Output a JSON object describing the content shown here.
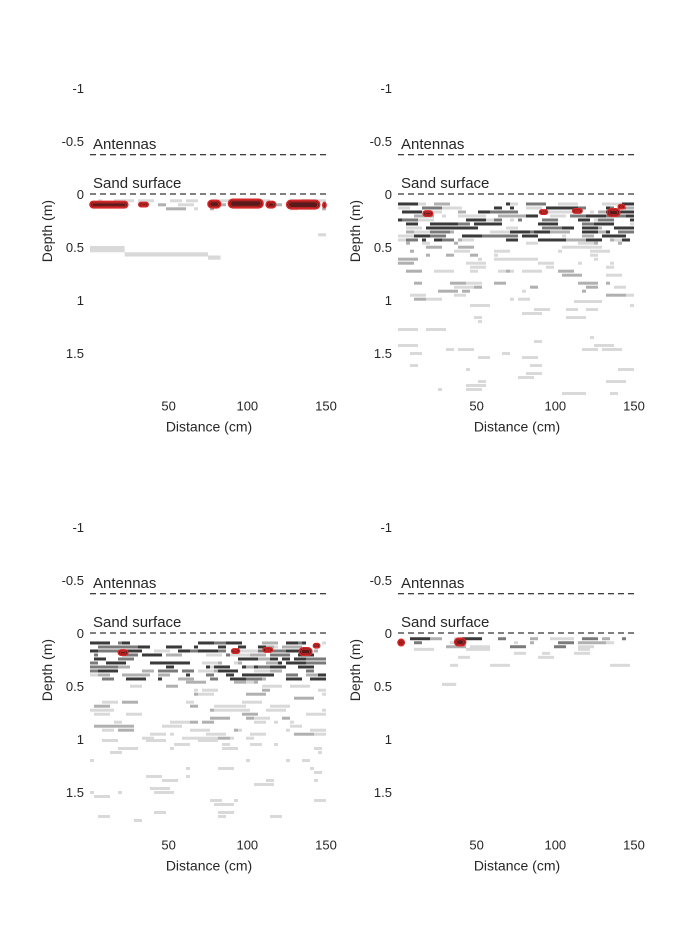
{
  "chart_data": [
    {
      "type": "heatmap",
      "panel": "top-left",
      "xlabel": "Distance (cm)",
      "ylabel": "Depth (m)",
      "xlim": [
        0,
        150
      ],
      "ylim": [
        -1,
        1.7
      ],
      "y_reversed": true,
      "xticks": [
        50,
        100,
        150
      ],
      "yticks": [
        -1,
        -0.5,
        0,
        0.5,
        1,
        1.5
      ],
      "grid": false,
      "reference_lines": [
        {
          "label": "Antennas",
          "depth": -0.37,
          "style": "dashed"
        },
        {
          "label": "Sand surface",
          "depth": 0,
          "style": "dashed"
        }
      ],
      "colormap": [
        "#ffffff",
        "#d9d9d9",
        "#b0b0b0",
        "#7a7a7a",
        "#3a3a3a",
        "#000000"
      ],
      "highlight_color": "#d62728",
      "highlight_regions": [
        {
          "x": [
            0,
            24
          ],
          "depth": [
            0.07,
            0.13
          ]
        },
        {
          "x": [
            31,
            37
          ],
          "depth": [
            0.08,
            0.12
          ]
        },
        {
          "x": [
            75,
            83
          ],
          "depth": [
            0.06,
            0.13
          ]
        },
        {
          "x": [
            88,
            110
          ],
          "depth": [
            0.05,
            0.13
          ]
        },
        {
          "x": [
            112,
            118
          ],
          "depth": [
            0.07,
            0.13
          ]
        },
        {
          "x": [
            125,
            146
          ],
          "depth": [
            0.06,
            0.14
          ]
        },
        {
          "x": [
            148,
            150
          ],
          "depth": [
            0.08,
            0.13
          ]
        }
      ],
      "reflections": [
        {
          "x": [
            0,
            150
          ],
          "depth": [
            0.05,
            0.15
          ],
          "intensity": 1
        },
        {
          "x": [
            0,
            22
          ],
          "depth": [
            0.49,
            0.55
          ],
          "intensity": 1
        },
        {
          "x": [
            22,
            75
          ],
          "depth": [
            0.55,
            0.59
          ],
          "intensity": 1
        },
        {
          "x": [
            75,
            83
          ],
          "depth": [
            0.58,
            0.62
          ],
          "intensity": 1
        },
        {
          "x": [
            145,
            150
          ],
          "depth": [
            0.37,
            0.4
          ],
          "intensity": 1
        }
      ]
    },
    {
      "type": "heatmap",
      "panel": "top-right",
      "xlabel": "Distance (cm)",
      "ylabel": "Depth (m)",
      "xlim": [
        0,
        150
      ],
      "ylim": [
        -1,
        1.7
      ],
      "y_reversed": true,
      "xticks": [
        50,
        100,
        150
      ],
      "yticks": [
        -1,
        -0.5,
        0,
        0.5,
        1,
        1.5
      ],
      "grid": false,
      "reference_lines": [
        {
          "label": "Antennas",
          "depth": -0.37,
          "style": "dashed"
        },
        {
          "label": "Sand surface",
          "depth": 0,
          "style": "dashed"
        }
      ],
      "colormap": [
        "#ffffff",
        "#d9d9d9",
        "#b0b0b0",
        "#7a7a7a",
        "#3a3a3a",
        "#000000"
      ],
      "highlight_color": "#d62728",
      "highlight_regions": [
        {
          "x": [
            16,
            22
          ],
          "depth": [
            0.16,
            0.21
          ]
        },
        {
          "x": [
            90,
            95
          ],
          "depth": [
            0.15,
            0.19
          ]
        },
        {
          "x": [
            111,
            117
          ],
          "depth": [
            0.14,
            0.18
          ]
        },
        {
          "x": [
            133,
            141
          ],
          "depth": [
            0.14,
            0.21
          ]
        },
        {
          "x": [
            140,
            144
          ],
          "depth": [
            0.1,
            0.14
          ]
        }
      ],
      "reflections": [
        {
          "x": [
            0,
            150
          ],
          "depth": [
            0.08,
            0.45
          ],
          "intensity": 3
        },
        {
          "x": [
            0,
            150
          ],
          "depth": [
            0.45,
            1.0
          ],
          "intensity": 1
        },
        {
          "x": [
            0,
            150
          ],
          "depth": [
            1.0,
            1.9
          ],
          "intensity": 0.25
        }
      ]
    },
    {
      "type": "heatmap",
      "panel": "bottom-left",
      "xlabel": "Distance (cm)",
      "ylabel": "Depth (m)",
      "xlim": [
        0,
        150
      ],
      "ylim": [
        -1,
        1.7
      ],
      "y_reversed": true,
      "xticks": [
        50,
        100,
        150
      ],
      "yticks": [
        -1,
        -0.5,
        0,
        0.5,
        1,
        1.5
      ],
      "grid": false,
      "reference_lines": [
        {
          "label": "Antennas",
          "depth": -0.37,
          "style": "dashed"
        },
        {
          "label": "Sand surface",
          "depth": 0,
          "style": "dashed"
        }
      ],
      "colormap": [
        "#ffffff",
        "#d9d9d9",
        "#b0b0b0",
        "#7a7a7a",
        "#3a3a3a",
        "#000000"
      ],
      "highlight_color": "#d62728",
      "highlight_regions": [
        {
          "x": [
            18,
            24
          ],
          "depth": [
            0.16,
            0.21
          ]
        },
        {
          "x": [
            90,
            95
          ],
          "depth": [
            0.15,
            0.19
          ]
        },
        {
          "x": [
            110,
            116
          ],
          "depth": [
            0.14,
            0.18
          ]
        },
        {
          "x": [
            133,
            141
          ],
          "depth": [
            0.14,
            0.21
          ]
        },
        {
          "x": [
            142,
            146
          ],
          "depth": [
            0.1,
            0.14
          ]
        }
      ],
      "reflections": [
        {
          "x": [
            0,
            150
          ],
          "depth": [
            0.08,
            0.45
          ],
          "intensity": 3
        },
        {
          "x": [
            0,
            150
          ],
          "depth": [
            0.45,
            1.0
          ],
          "intensity": 1
        },
        {
          "x": [
            0,
            150
          ],
          "depth": [
            1.0,
            1.9
          ],
          "intensity": 0.25
        }
      ]
    },
    {
      "type": "heatmap",
      "panel": "bottom-right",
      "xlabel": "Distance (cm)",
      "ylabel": "Depth (m)",
      "xlim": [
        0,
        150
      ],
      "ylim": [
        -1,
        1.7
      ],
      "y_reversed": true,
      "xticks": [
        50,
        100,
        150
      ],
      "yticks": [
        -1,
        -0.5,
        0,
        0.5,
        1,
        1.5
      ],
      "grid": false,
      "reference_lines": [
        {
          "label": "Antennas",
          "depth": -0.37,
          "style": "dashed"
        },
        {
          "label": "Sand surface",
          "depth": 0,
          "style": "dashed"
        }
      ],
      "colormap": [
        "#ffffff",
        "#d9d9d9",
        "#b0b0b0",
        "#7a7a7a",
        "#3a3a3a",
        "#000000"
      ],
      "highlight_color": "#d62728",
      "highlight_regions": [
        {
          "x": [
            0,
            4
          ],
          "depth": [
            0.06,
            0.12
          ]
        },
        {
          "x": [
            36,
            43
          ],
          "depth": [
            0.05,
            0.12
          ]
        }
      ],
      "reflections": [
        {
          "x": [
            0,
            150
          ],
          "depth": [
            0.04,
            0.14
          ],
          "intensity": 2
        },
        {
          "x": [
            0,
            150
          ],
          "depth": [
            0.14,
            0.3
          ],
          "intensity": 0.5
        },
        {
          "x": [
            28,
            37
          ],
          "depth": [
            0.47,
            0.5
          ],
          "intensity": 1
        }
      ]
    }
  ]
}
